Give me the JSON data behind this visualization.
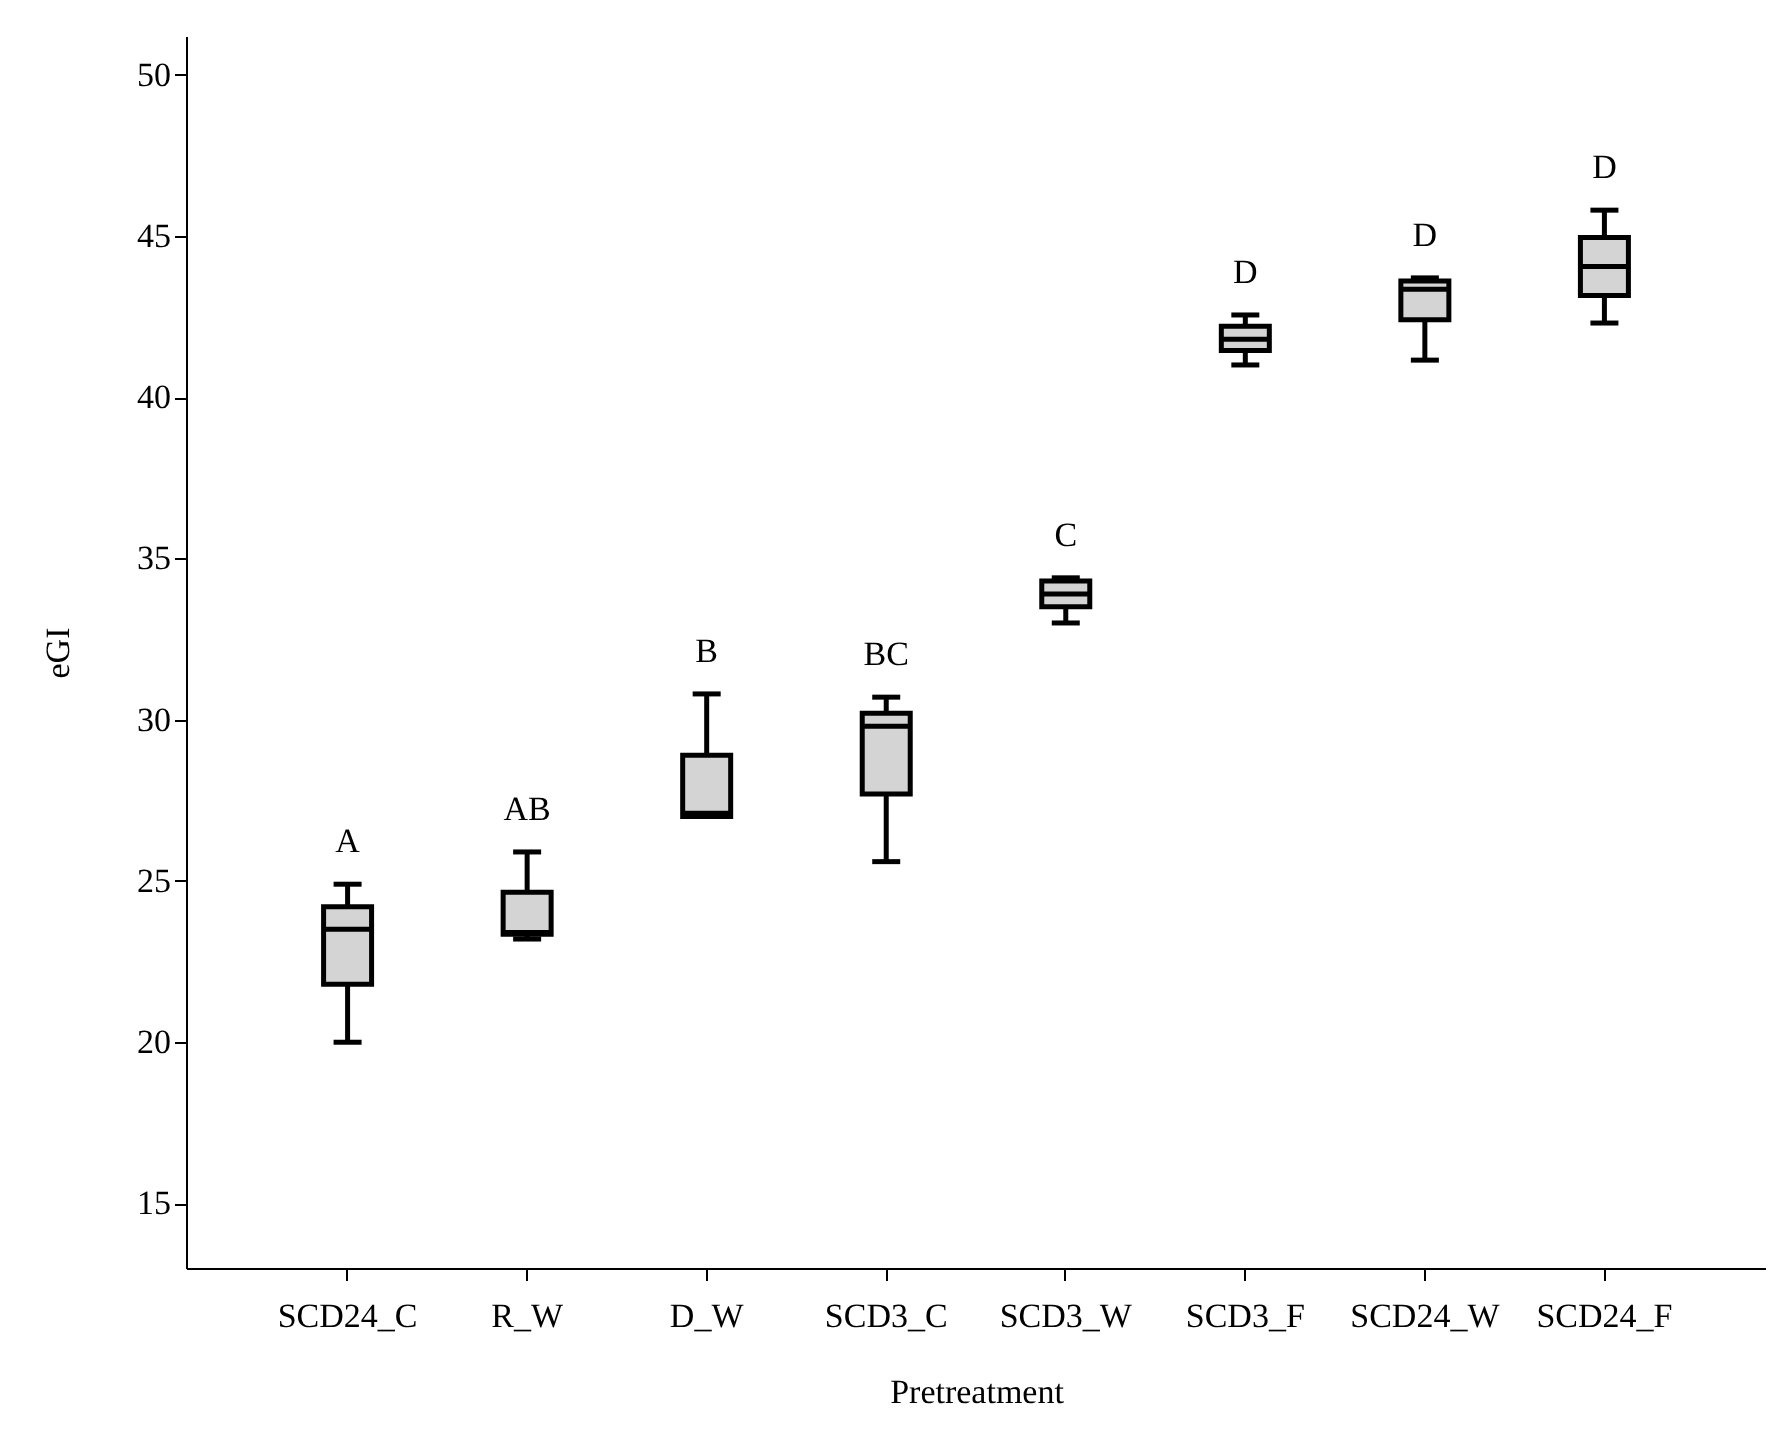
{
  "chart_data": {
    "type": "box",
    "xlabel": "Pretreatment",
    "ylabel": "eGI",
    "color": "#d4d4d4",
    "categories": [
      "SCD24_C",
      "R_W",
      "D_W",
      "SCD3_C",
      "SCD3_W",
      "SCD3_F",
      "SCD24_W",
      "SCD24_F"
    ],
    "boxes": [
      {
        "low": 20.0,
        "q1": 21.8,
        "median": 23.5,
        "q3": 24.2,
        "high": 24.9
      },
      {
        "low": 23.2,
        "q1": 23.35,
        "median": 23.4,
        "q3": 24.65,
        "high": 25.9
      },
      {
        "low": 27.0,
        "q1": 27.0,
        "median": 27.1,
        "q3": 28.9,
        "high": 30.8
      },
      {
        "low": 25.6,
        "q1": 27.7,
        "median": 29.8,
        "q3": 30.2,
        "high": 30.7
      },
      {
        "low": 33.0,
        "q1": 33.5,
        "median": 33.9,
        "q3": 34.3,
        "high": 34.4
      },
      {
        "low": 41.0,
        "q1": 41.45,
        "median": 41.8,
        "q3": 42.2,
        "high": 42.55
      },
      {
        "low": 41.15,
        "q1": 42.4,
        "median": 43.35,
        "q3": 43.6,
        "high": 43.7
      },
      {
        "low": 42.3,
        "q1": 43.15,
        "median": 44.05,
        "q3": 44.95,
        "high": 45.8
      }
    ],
    "annotations": [
      "A",
      "AB",
      "B",
      "BC",
      "C",
      "D",
      "D",
      "D"
    ],
    "ylim": [
      13,
      51.2
    ],
    "yticks": [
      15,
      20,
      25,
      30,
      35,
      40,
      45,
      50
    ],
    "grid": false
  }
}
